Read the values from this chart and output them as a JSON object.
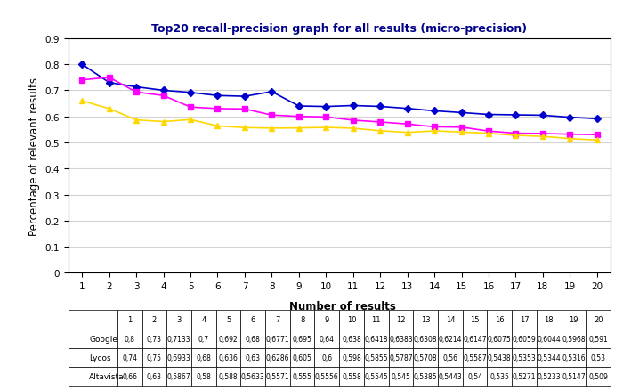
{
  "title": "Top20 recall-precision graph for all results (micro-precision)",
  "xlabel": "Number of results",
  "ylabel": "Percentage of relevant results",
  "x": [
    1,
    2,
    3,
    4,
    5,
    6,
    7,
    8,
    9,
    10,
    11,
    12,
    13,
    14,
    15,
    16,
    17,
    18,
    19,
    20
  ],
  "google": [
    0.8,
    0.73,
    0.7133,
    0.7,
    0.692,
    0.68,
    0.6771,
    0.695,
    0.64,
    0.638,
    0.6418,
    0.6383,
    0.6308,
    0.6214,
    0.6147,
    0.6075,
    0.6059,
    0.6044,
    0.5968,
    0.591
  ],
  "lycos": [
    0.74,
    0.75,
    0.6933,
    0.68,
    0.636,
    0.63,
    0.6286,
    0.605,
    0.6,
    0.598,
    0.5855,
    0.5787,
    0.5708,
    0.56,
    0.5587,
    0.5438,
    0.5353,
    0.5344,
    0.5316,
    0.53
  ],
  "altavista": [
    0.66,
    0.63,
    0.5867,
    0.58,
    0.588,
    0.5633,
    0.5571,
    0.555,
    0.5556,
    0.558,
    0.5545,
    0.545,
    0.5385,
    0.5443,
    0.54,
    0.535,
    0.5271,
    0.5233,
    0.5147,
    0.509
  ],
  "google_str": [
    "0,8",
    "0,73",
    "0,7133",
    "0,7",
    "0,692",
    "0,68",
    "0,6771",
    "0,695",
    "0,64",
    "0,638",
    "0,6418",
    "0,6383",
    "0,6308",
    "0,6214",
    "0,6147",
    "0,6075",
    "0,6059",
    "0,6044",
    "0,5968",
    "0,591"
  ],
  "lycos_str": [
    "0,74",
    "0,75",
    "0,6933",
    "0,68",
    "0,636",
    "0,63",
    "0,6286",
    "0,605",
    "0,6",
    "0,598",
    "0,5855",
    "0,5787",
    "0,5708",
    "0,56",
    "0,5587",
    "0,5438",
    "0,5353",
    "0,5344",
    "0,5316",
    "0,53"
  ],
  "altavista_str": [
    "0,66",
    "0,63",
    "0,5867",
    "0,58",
    "0,588",
    "0,5633",
    "0,5571",
    "0,555",
    "0,5556",
    "0,558",
    "0,5545",
    "0,545",
    "0,5385",
    "0,5443",
    "0,54",
    "0,535",
    "0,5271",
    "0,5233",
    "0,5147",
    "0,509"
  ],
  "google_color": "#0000CD",
  "lycos_color": "#FF00FF",
  "altavista_color": "#FFD700",
  "ylim": [
    0,
    0.9
  ],
  "yticks": [
    0,
    0.1,
    0.2,
    0.3,
    0.4,
    0.5,
    0.6,
    0.7,
    0.8,
    0.9
  ],
  "ytick_labels": [
    "0",
    "0.1",
    "0.2",
    "0.3",
    "0.4",
    "0.5",
    "0.6",
    "0.7",
    "0.8",
    "0.9"
  ],
  "legend_labels": [
    "Google",
    "Lycos",
    "Altavista"
  ]
}
